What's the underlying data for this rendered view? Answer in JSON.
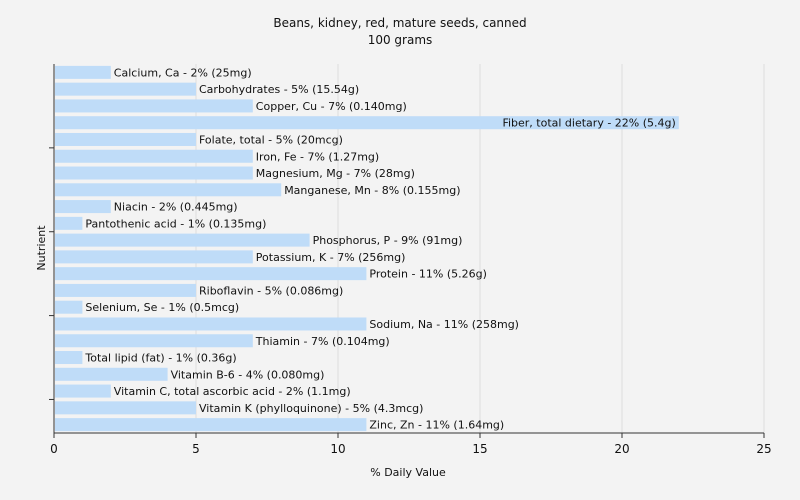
{
  "chart_data": {
    "type": "bar",
    "orientation": "horizontal",
    "title": "Beans, kidney, red, mature seeds, canned",
    "subtitle": "100 grams",
    "xlabel": "% Daily Value",
    "ylabel": "Nutrient",
    "xlim": [
      0,
      25
    ],
    "xticks": [
      0,
      5,
      10,
      15,
      20,
      25
    ],
    "grid": true,
    "bar_color": "#bfdcf8",
    "categories": [
      "Calcium, Ca",
      "Carbohydrates",
      "Copper, Cu",
      "Fiber, total dietary",
      "Folate, total",
      "Iron, Fe",
      "Magnesium, Mg",
      "Manganese, Mn",
      "Niacin",
      "Pantothenic acid",
      "Phosphorus, P",
      "Potassium, K",
      "Protein",
      "Riboflavin",
      "Selenium, Se",
      "Sodium, Na",
      "Thiamin",
      "Total lipid (fat)",
      "Vitamin B-6",
      "Vitamin C, total ascorbic acid",
      "Vitamin K (phylloquinone)",
      "Zinc, Zn"
    ],
    "values": [
      2,
      5,
      7,
      22,
      5,
      7,
      7,
      8,
      2,
      1,
      9,
      7,
      11,
      5,
      1,
      11,
      7,
      1,
      4,
      2,
      5,
      11
    ],
    "labels": [
      "Calcium, Ca - 2% (25mg)",
      "Carbohydrates - 5% (15.54g)",
      "Copper, Cu - 7% (0.140mg)",
      "Fiber, total dietary - 22% (5.4g)",
      "Folate, total - 5% (20mcg)",
      "Iron, Fe - 7% (1.27mg)",
      "Magnesium, Mg - 7% (28mg)",
      "Manganese, Mn - 8% (0.155mg)",
      "Niacin - 2% (0.445mg)",
      "Pantothenic acid - 1% (0.135mg)",
      "Phosphorus, P - 9% (91mg)",
      "Potassium, K - 7% (256mg)",
      "Protein - 11% (5.26g)",
      "Riboflavin - 5% (0.086mg)",
      "Selenium, Se - 1% (0.5mcg)",
      "Sodium, Na - 11% (258mg)",
      "Thiamin - 7% (0.104mg)",
      "Total lipid (fat) - 1% (0.36g)",
      "Vitamin B-6 - 4% (0.080mg)",
      "Vitamin C, total ascorbic acid - 2% (1.1mg)",
      "Vitamin K (phylloquinone) - 5% (4.3mcg)",
      "Zinc, Zn - 11% (1.64mg)"
    ]
  }
}
